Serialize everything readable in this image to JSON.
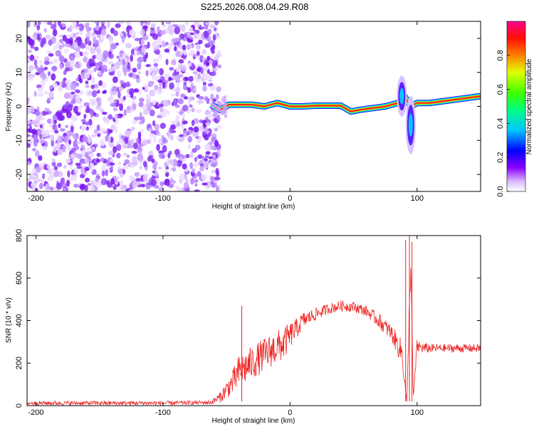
{
  "chart_data": [
    {
      "type": "heatmap",
      "title": "S225.2026.008.04.29.R08",
      "xlabel": "Height of straight line (km)",
      "ylabel": "Frequency (Hz)",
      "xlim": [
        -207,
        150
      ],
      "ylim": [
        -25,
        25
      ],
      "xticks": [
        -200,
        -100,
        0,
        100
      ],
      "yticks": [
        -20,
        -10,
        0,
        10,
        20
      ],
      "xtick_labels": [
        "-200",
        "-100",
        "0",
        "100"
      ],
      "ytick_labels": [
        "-20",
        "-10",
        "0",
        "10",
        "20"
      ],
      "noise_region": [
        -207,
        -60
      ],
      "signal_track": {
        "x": [
          -62,
          -55,
          -48,
          -40,
          -30,
          -20,
          -10,
          0,
          10,
          20,
          30,
          40,
          48,
          55,
          65,
          75,
          85,
          90,
          95,
          100,
          110,
          120,
          130,
          140,
          150
        ],
        "y": [
          0.5,
          -1,
          0.5,
          0.5,
          0.5,
          0,
          1,
          0,
          0,
          0.2,
          0.2,
          0.2,
          -1.5,
          -1,
          -0.5,
          0,
          1,
          3,
          0,
          1,
          1,
          1.5,
          2,
          2.5,
          3
        ]
      },
      "burst_features": [
        {
          "x": 88,
          "ylim": [
            -3,
            9
          ]
        },
        {
          "x": 95,
          "ylim": [
            -14,
            3
          ]
        }
      ],
      "colorbar": {
        "label": "Normalized spectral amplitude",
        "ticks": [
          0.0,
          0.2,
          0.4,
          0.6,
          0.8
        ],
        "tick_labels": [
          "0.0",
          "0.2",
          "0.4",
          "0.6",
          "0.8"
        ],
        "range": [
          0,
          1
        ],
        "colors": [
          "#ffffff",
          "#7a00ff",
          "#0000ff",
          "#00e0ff",
          "#00ff00",
          "#ffff00",
          "#ff8000",
          "#ff0000",
          "#ff0080"
        ]
      }
    },
    {
      "type": "line",
      "xlabel": "Height of straight line (km)",
      "ylabel": "SNR (10 * v/v)",
      "xlim": [
        -207,
        150
      ],
      "ylim": [
        0,
        800
      ],
      "xticks": [
        -200,
        -100,
        0,
        100
      ],
      "yticks": [
        0,
        200,
        400,
        600,
        800
      ],
      "xtick_labels": [
        "-200",
        "-100",
        "0",
        "100"
      ],
      "ytick_labels": [
        "0",
        "200",
        "400",
        "600",
        "800"
      ],
      "color": "#ee2222",
      "series": [
        {
          "name": "SNR",
          "x": [
            -207,
            -150,
            -100,
            -62,
            -55,
            -45,
            -40,
            -35,
            -25,
            -15,
            -5,
            0,
            5,
            10,
            20,
            30,
            40,
            50,
            60,
            70,
            80,
            88,
            92,
            95,
            97,
            100,
            105,
            115,
            130,
            150
          ],
          "y": [
            12,
            12,
            12,
            15,
            40,
            110,
            160,
            180,
            220,
            260,
            290,
            330,
            360,
            400,
            430,
            455,
            470,
            465,
            445,
            400,
            340,
            250,
            10,
            700,
            30,
            280,
            270,
            270,
            270,
            270
          ],
          "spread": [
            10,
            10,
            10,
            10,
            25,
            60,
            80,
            80,
            80,
            80,
            80,
            60,
            50,
            40,
            30,
            25,
            25,
            25,
            25,
            35,
            40,
            60,
            10,
            120,
            10,
            35,
            25,
            20,
            20,
            20
          ]
        }
      ],
      "spikes": [
        {
          "x": -38,
          "y": 470
        },
        {
          "x": 91,
          "y": 780
        },
        {
          "x": 94,
          "y": 810
        },
        {
          "x": 96,
          "y": 770
        }
      ]
    }
  ]
}
